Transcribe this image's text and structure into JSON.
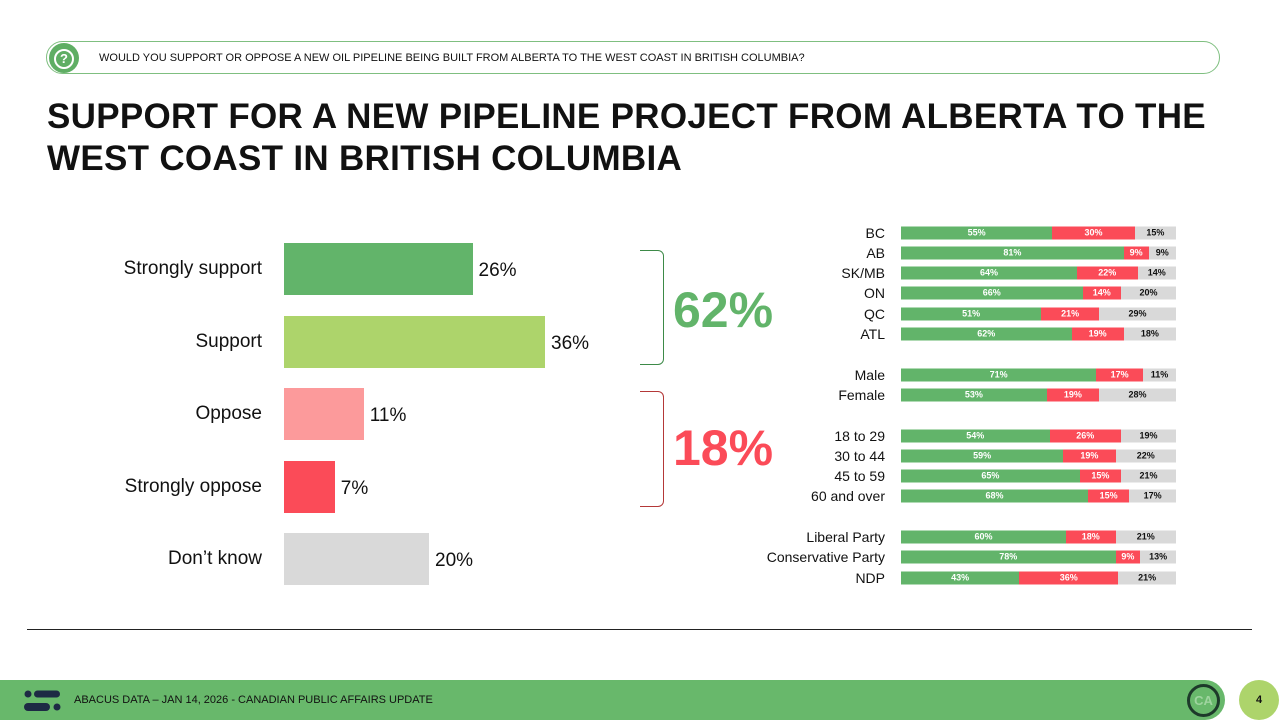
{
  "question": "WOULD YOU SUPPORT OR OPPOSE A NEW OIL PIPELINE BEING BUILT FROM ALBERTA TO THE WEST COAST IN BRITISH COLUMBIA?",
  "title": "SUPPORT FOR A NEW PIPELINE PROJECT FROM ALBERTA TO THE WEST COAST IN BRITISH COLUMBIA",
  "footer": {
    "text": "ABACUS DATA – JAN 14, 2026 - CANADIAN PUBLIC AFFAIRS UPDATE",
    "badge": "CA",
    "page": "4"
  },
  "colors": {
    "strong_support": "#62b46a",
    "support": "#add46b",
    "oppose": "#fc9a9b",
    "strong_oppose": "#fb4b58",
    "dont_know": "#d9d9d9"
  },
  "chart_data": [
    {
      "type": "bar",
      "orientation": "horizontal",
      "categories": [
        "Strongly support",
        "Support",
        "Oppose",
        "Strongly oppose",
        "Don’t know"
      ],
      "values": [
        26,
        36,
        11,
        7,
        20
      ],
      "labels": [
        "26%",
        "36%",
        "11%",
        "7%",
        "20%"
      ],
      "totals": {
        "support": "62%",
        "oppose": "18%"
      }
    },
    {
      "type": "bar",
      "stacked": true,
      "orientation": "horizontal",
      "series_names": [
        "Support",
        "Oppose",
        "Don't know"
      ],
      "groups": [
        [
          {
            "label": "BC",
            "v": [
              55,
              30,
              15
            ]
          },
          {
            "label": "AB",
            "v": [
              81,
              9,
              9
            ]
          },
          {
            "label": "SK/MB",
            "v": [
              64,
              22,
              14
            ]
          },
          {
            "label": "ON",
            "v": [
              66,
              14,
              20
            ]
          },
          {
            "label": "QC",
            "v": [
              51,
              21,
              29
            ]
          },
          {
            "label": "ATL",
            "v": [
              62,
              19,
              18
            ]
          }
        ],
        [
          {
            "label": "Male",
            "v": [
              71,
              17,
              11
            ]
          },
          {
            "label": "Female",
            "v": [
              53,
              19,
              28
            ]
          }
        ],
        [
          {
            "label": "18 to 29",
            "v": [
              54,
              26,
              19
            ]
          },
          {
            "label": "30 to 44",
            "v": [
              59,
              19,
              22
            ]
          },
          {
            "label": "45 to 59",
            "v": [
              65,
              15,
              21
            ]
          },
          {
            "label": "60 and over",
            "v": [
              68,
              15,
              17
            ]
          }
        ],
        [
          {
            "label": "Liberal Party",
            "v": [
              60,
              18,
              21
            ]
          },
          {
            "label": "Conservative Party",
            "v": [
              78,
              9,
              13
            ]
          },
          {
            "label": "NDP",
            "v": [
              43,
              36,
              21
            ]
          }
        ]
      ]
    }
  ]
}
